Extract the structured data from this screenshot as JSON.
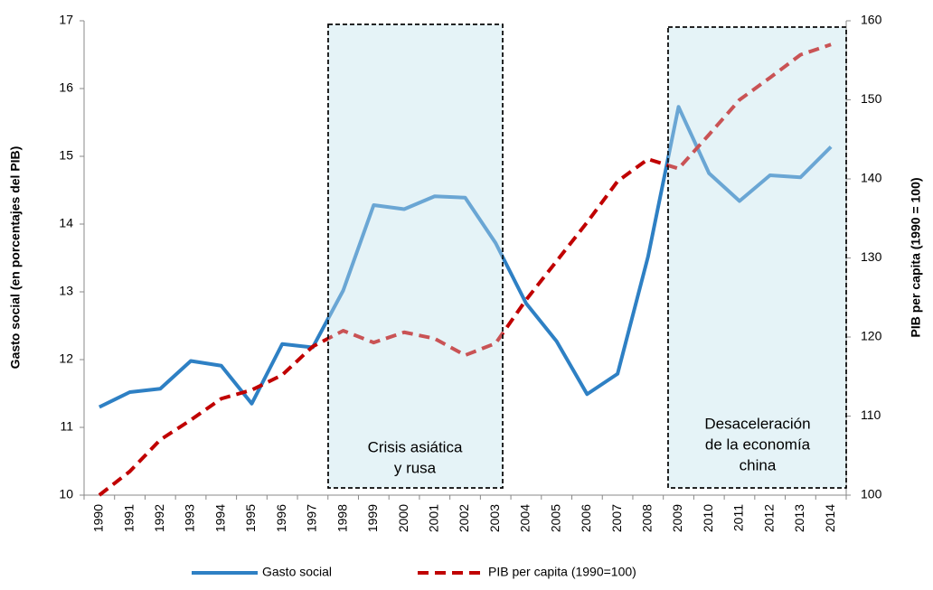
{
  "chart_data": {
    "type": "line",
    "categories": [
      "1990",
      "1991",
      "1992",
      "1993",
      "1994",
      "1995",
      "1996",
      "1997",
      "1998",
      "1999",
      "2000",
      "2001",
      "2002",
      "2003",
      "2004",
      "2005",
      "2006",
      "2007",
      "2008",
      "2009",
      "2010",
      "2011",
      "2012",
      "2013",
      "2014"
    ],
    "series": [
      {
        "name": "Gasto social",
        "color": "#2e80c4",
        "values": [
          11.3,
          11.52,
          11.57,
          11.98,
          11.91,
          11.35,
          12.23,
          12.18,
          13.02,
          14.28,
          14.22,
          14.41,
          14.39,
          13.72,
          12.83,
          12.27,
          11.49,
          11.79,
          13.52,
          15.73,
          14.75,
          14.34,
          14.72,
          14.69,
          15.14
        ]
      },
      {
        "name": "PIB per capita (1990=100)",
        "color": "#c00000",
        "axis": "y2",
        "dashed": true,
        "values": [
          100,
          103,
          107,
          109.5,
          112.2,
          113.3,
          115.2,
          118.8,
          120.8,
          119.3,
          120.6,
          119.8,
          117.7,
          119.2,
          124.7,
          129.6,
          134.5,
          139.7,
          142.5,
          141.3,
          145.6,
          150,
          152.8,
          155.7,
          157
        ]
      }
    ],
    "ylabel": "Gasto social (en porcentajes del PIB)",
    "y2label": "PIB per capita (1990 = 100)",
    "ylim": [
      10,
      17
    ],
    "yticks": [
      10,
      11,
      12,
      13,
      14,
      15,
      16,
      17
    ],
    "y2lim": [
      100,
      160
    ],
    "y2ticks": [
      100,
      110,
      120,
      130,
      140,
      150,
      160
    ],
    "annotations": [
      [
        "Crisis asiática",
        "y rusa"
      ],
      [
        "Desaceleración",
        "de la economía",
        "china"
      ]
    ]
  }
}
